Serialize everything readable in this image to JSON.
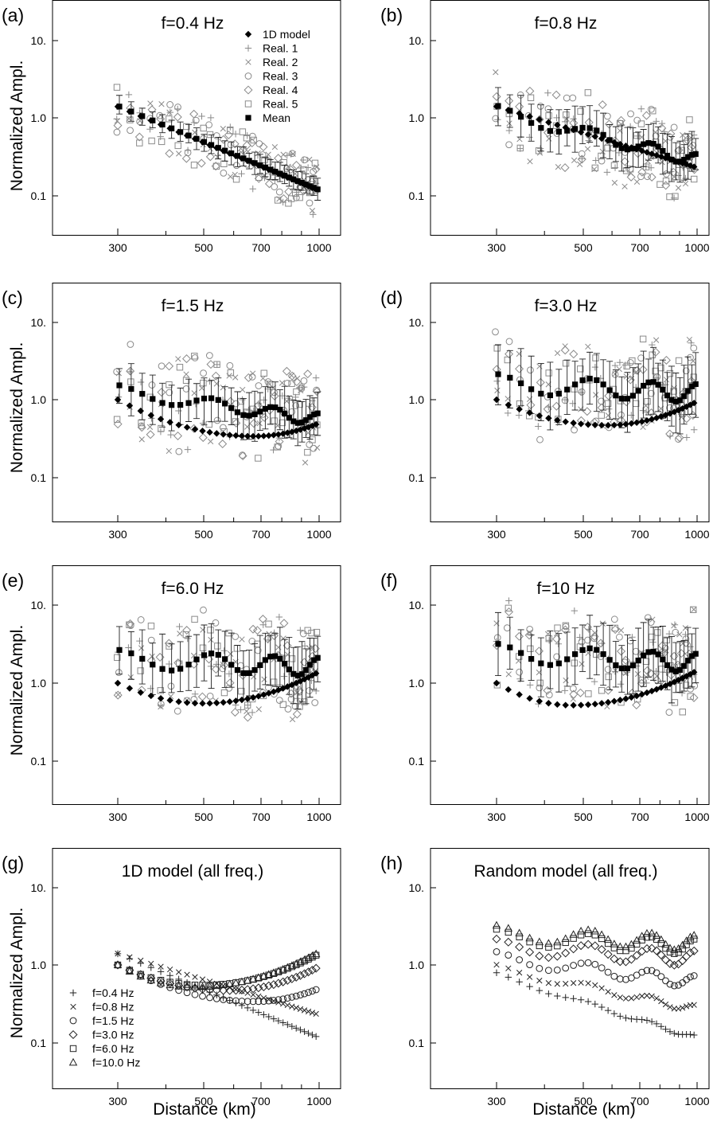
{
  "figure": {
    "y_axis_label": "Normalized Ampl.",
    "x_axis_label": "Distance (km)",
    "x_ticks": [
      "300",
      "500",
      "700",
      "1000"
    ],
    "y_ticks": [
      "10.",
      "1.0",
      "0.1"
    ]
  },
  "colors": {
    "black": "#000000",
    "gray": "#8a8a8a",
    "dark": "#222222"
  },
  "legend_top": [
    {
      "label": "1D model",
      "marker": "diamond-filled"
    },
    {
      "label": "Real. 1",
      "marker": "plus"
    },
    {
      "label": "Real. 2",
      "marker": "cross"
    },
    {
      "label": "Real. 3",
      "marker": "circle"
    },
    {
      "label": "Real. 4",
      "marker": "diamond"
    },
    {
      "label": "Real. 5",
      "marker": "square"
    },
    {
      "label": "Mean",
      "marker": "square-filled"
    }
  ],
  "legend_freq": [
    {
      "label": "f=0.4 Hz",
      "marker": "plus"
    },
    {
      "label": "f=0.8 Hz",
      "marker": "cross"
    },
    {
      "label": "f=1.5 Hz",
      "marker": "circle"
    },
    {
      "label": "f=3.0 Hz",
      "marker": "diamond"
    },
    {
      "label": "f=6.0 Hz",
      "marker": "square"
    },
    {
      "label": "f=10.0 Hz",
      "marker": "triangle"
    }
  ],
  "chart_data": [
    {
      "id": "a",
      "panel_label": "(a)",
      "title": "f=0.4 Hz",
      "type": "scatter",
      "x_scale": "log",
      "y_scale": "log",
      "xlim": [
        250,
        1060
      ],
      "ylim": [
        0.05,
        20
      ],
      "oned": {
        "a": 0.1167,
        "b": 2.06
      },
      "mean": {
        "a": 0.1167,
        "b": 2.06,
        "amp": 0.0,
        "err": 0.15
      },
      "scatter_spread": 0.35
    },
    {
      "id": "b",
      "panel_label": "(b)",
      "title": "f=0.8 Hz",
      "type": "scatter",
      "x_scale": "log",
      "y_scale": "log",
      "xlim": [
        250,
        1060
      ],
      "ylim": [
        0.05,
        20
      ],
      "oned": {
        "a": 0.23,
        "b": 1.5
      },
      "mean": {
        "a": 0.28,
        "b": 1.2,
        "amp": 0.08,
        "err": 0.3
      },
      "scatter_spread": 0.5
    },
    {
      "id": "c",
      "panel_label": "(c)",
      "title": "f=1.5 Hz",
      "type": "scatter",
      "x_scale": "log",
      "y_scale": "log",
      "xlim": [
        250,
        1060
      ],
      "ylim": [
        0.05,
        20
      ],
      "oned": {
        "a": 0.49,
        "bowl": true,
        "min_x": 680,
        "min_y": 0.34,
        "end_y": 0.5
      },
      "mean": {
        "a": 0.55,
        "b": 0.7,
        "amp": 0.08,
        "err": 0.35
      },
      "scatter_spread": 0.6
    },
    {
      "id": "d",
      "panel_label": "(d)",
      "title": "f=3.0 Hz",
      "type": "scatter",
      "x_scale": "log",
      "y_scale": "log",
      "xlim": [
        250,
        1060
      ],
      "ylim": [
        0.05,
        20
      ],
      "oned": {
        "a": 0.95,
        "bowl": true,
        "min_x": 580,
        "min_y": 0.47,
        "end_y": 0.95
      },
      "mean": {
        "a": 1.2,
        "b": 0.25,
        "amp": 0.12,
        "err": 0.45
      },
      "scatter_spread": 0.6
    },
    {
      "id": "e",
      "panel_label": "(e)",
      "title": "f=6.0 Hz",
      "type": "scatter",
      "x_scale": "log",
      "y_scale": "log",
      "xlim": [
        250,
        1060
      ],
      "ylim": [
        0.05,
        20
      ],
      "oned": {
        "a": 1.4,
        "bowl": true,
        "min_x": 500,
        "min_y": 0.55,
        "end_y": 1.4
      },
      "mean": {
        "a": 1.6,
        "b": 0.2,
        "amp": 0.12,
        "err": 0.45
      },
      "scatter_spread": 0.6
    },
    {
      "id": "f",
      "panel_label": "(f)",
      "title": "f=10 Hz",
      "type": "scatter",
      "x_scale": "log",
      "y_scale": "log",
      "xlim": [
        250,
        1060
      ],
      "ylim": [
        0.05,
        20
      ],
      "oned": {
        "a": 1.4,
        "bowl": true,
        "min_x": 470,
        "min_y": 0.52,
        "end_y": 1.45
      },
      "mean": {
        "a": 1.8,
        "b": 0.25,
        "amp": 0.12,
        "err": 0.45
      },
      "scatter_spread": 0.6
    },
    {
      "id": "g",
      "panel_label": "(g)",
      "title": "1D model (all freq.)",
      "type": "scatter",
      "x_scale": "log",
      "y_scale": "log",
      "xlim": [
        250,
        1060
      ],
      "ylim": [
        0.05,
        20
      ],
      "series": [
        {
          "name": "f=0.4 Hz",
          "marker": "plus",
          "model": {
            "a": 0.1167,
            "b": 2.06
          }
        },
        {
          "name": "f=0.8 Hz",
          "marker": "cross",
          "model": {
            "a": 0.23,
            "b": 1.5
          }
        },
        {
          "name": "f=1.5 Hz",
          "marker": "circle",
          "model": {
            "bowl": true,
            "min_x": 680,
            "min_y": 0.34,
            "end_y": 0.5
          }
        },
        {
          "name": "f=3.0 Hz",
          "marker": "diamond",
          "model": {
            "bowl": true,
            "min_x": 580,
            "min_y": 0.47,
            "end_y": 0.95
          }
        },
        {
          "name": "f=6.0 Hz",
          "marker": "square",
          "model": {
            "bowl": true,
            "min_x": 500,
            "min_y": 0.55,
            "end_y": 1.4
          }
        },
        {
          "name": "f=10.0 Hz",
          "marker": "triangle",
          "model": {
            "bowl": true,
            "min_x": 470,
            "min_y": 0.52,
            "end_y": 1.45
          }
        }
      ]
    },
    {
      "id": "h",
      "panel_label": "(h)",
      "title": "Random model (all freq.)",
      "type": "scatter",
      "x_scale": "log",
      "y_scale": "log",
      "xlim": [
        250,
        1060
      ],
      "ylim": [
        0.05,
        20
      ],
      "series": [
        {
          "name": "f=0.4 Hz",
          "marker": "plus",
          "model": {
            "a": 0.115,
            "b": 1.55,
            "amp": 0.03
          }
        },
        {
          "name": "f=0.8 Hz",
          "marker": "cross",
          "model": {
            "a": 0.27,
            "b": 1.0,
            "amp": 0.05
          }
        },
        {
          "name": "f=1.5 Hz",
          "marker": "circle",
          "model": {
            "a": 0.6,
            "b": 0.6,
            "amp": 0.08
          }
        },
        {
          "name": "f=3.0 Hz",
          "marker": "diamond",
          "model": {
            "a": 1.2,
            "b": 0.3,
            "amp": 0.1
          }
        },
        {
          "name": "f=6.0 Hz",
          "marker": "square",
          "model": {
            "a": 1.7,
            "b": 0.25,
            "amp": 0.1
          }
        },
        {
          "name": "f=10.0 Hz",
          "marker": "triangle",
          "model": {
            "a": 1.9,
            "b": 0.25,
            "amp": 0.1
          }
        }
      ]
    }
  ]
}
